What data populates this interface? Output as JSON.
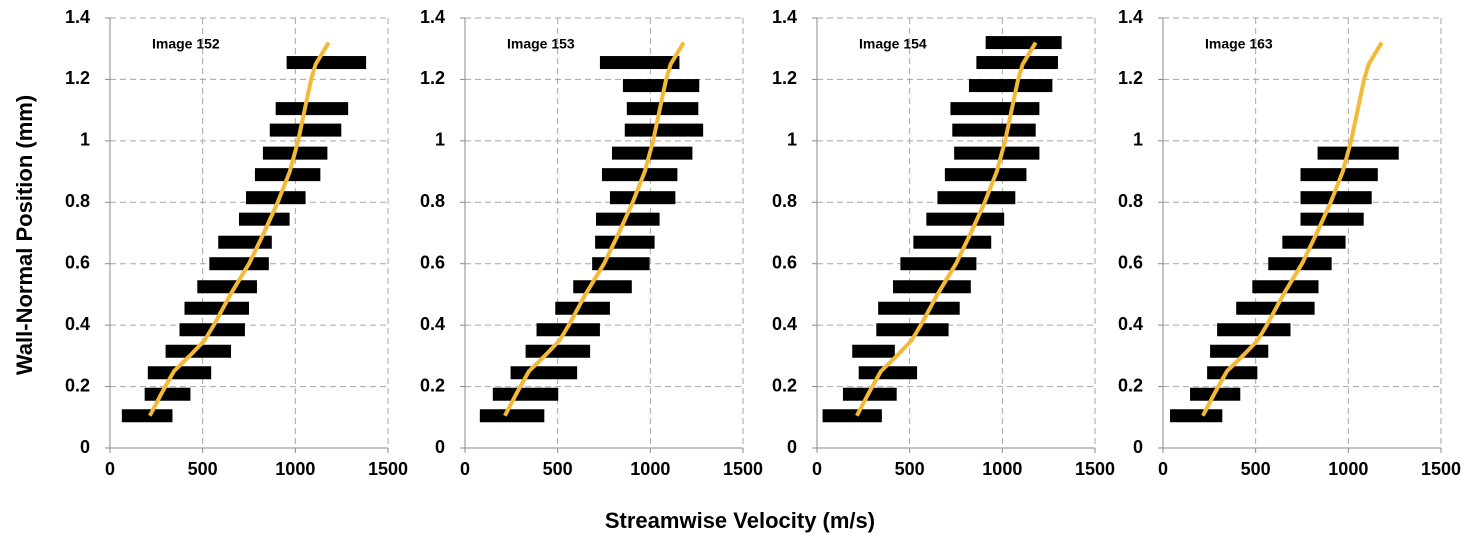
{
  "x_label": "Streamwise Velocity (m/s)",
  "y_label": "Wall-Normal Position (mm)",
  "chart_data": [
    {
      "type": "range-profile",
      "title": "Image 152",
      "xlim": [
        0,
        1500
      ],
      "xticks": [
        0,
        500,
        1000,
        1500
      ],
      "ylim": [
        0,
        1.4
      ],
      "yticks": [
        0,
        0.2,
        0.4,
        0.6,
        0.8,
        1,
        1.2,
        1.4
      ],
      "grid": true,
      "bars": {
        "color": "#000000",
        "y": [
          0.105,
          0.175,
          0.245,
          0.315,
          0.385,
          0.455,
          0.525,
          0.6,
          0.67,
          0.745,
          0.815,
          0.89,
          0.96,
          1.035,
          1.105,
          1.255
        ],
        "low": [
          64,
          187,
          204,
          300,
          375,
          402,
          471,
          536,
          584,
          696,
          734,
          782,
          825,
          862,
          894,
          953
        ],
        "high": [
          337,
          434,
          546,
          653,
          728,
          750,
          793,
          857,
          873,
          969,
          1055,
          1135,
          1173,
          1248,
          1285,
          1382
        ]
      },
      "line": {
        "color": "#f4b935",
        "y": [
          0.105,
          0.18,
          0.25,
          0.3,
          0.35,
          0.4,
          0.5,
          0.6,
          0.7,
          0.8,
          0.9,
          1,
          1.1,
          1.2,
          1.25,
          1.32
        ],
        "x": [
          215,
          280,
          345,
          430,
          510,
          560,
          650,
          750,
          830,
          905,
          970,
          1015,
          1050,
          1085,
          1110,
          1180
        ]
      }
    },
    {
      "type": "range-profile",
      "title": "Image 153",
      "xlim": [
        0,
        1500
      ],
      "xticks": [
        0,
        500,
        1000,
        1500
      ],
      "ylim": [
        0,
        1.4
      ],
      "yticks": [
        0,
        0.2,
        0.4,
        0.6,
        0.8,
        1,
        1.2,
        1.4
      ],
      "grid": true,
      "bars": {
        "color": "#000000",
        "y": [
          0.105,
          0.175,
          0.245,
          0.315,
          0.385,
          0.455,
          0.525,
          0.6,
          0.67,
          0.745,
          0.815,
          0.89,
          0.96,
          1.035,
          1.105,
          1.18,
          1.255
        ],
        "low": [
          80,
          150,
          246,
          327,
          386,
          487,
          584,
          686,
          702,
          707,
          782,
          739,
          793,
          862,
          873,
          852,
          728
        ],
        "high": [
          428,
          503,
          605,
          675,
          728,
          782,
          900,
          996,
          1023,
          1050,
          1135,
          1146,
          1227,
          1285,
          1259,
          1264,
          1157
        ]
      },
      "line": {
        "color": "#f4b935",
        "y": [
          0.105,
          0.18,
          0.25,
          0.3,
          0.35,
          0.4,
          0.5,
          0.6,
          0.7,
          0.8,
          0.9,
          1,
          1.1,
          1.2,
          1.25,
          1.32
        ],
        "x": [
          215,
          280,
          345,
          430,
          510,
          560,
          650,
          750,
          830,
          905,
          970,
          1015,
          1050,
          1085,
          1110,
          1180
        ]
      }
    },
    {
      "type": "range-profile",
      "title": "Image 154",
      "xlim": [
        0,
        1500
      ],
      "xticks": [
        0,
        500,
        1000,
        1500
      ],
      "ylim": [
        0,
        1.4
      ],
      "yticks": [
        0,
        0.2,
        0.4,
        0.6,
        0.8,
        1,
        1.2,
        1.4
      ],
      "grid": true,
      "bars": {
        "color": "#000000",
        "y": [
          0.105,
          0.175,
          0.245,
          0.315,
          0.385,
          0.455,
          0.525,
          0.6,
          0.67,
          0.745,
          0.815,
          0.89,
          0.96,
          1.035,
          1.105,
          1.18,
          1.255,
          1.32
        ],
        "low": [
          30,
          140,
          225,
          190,
          320,
          330,
          410,
          450,
          520,
          590,
          650,
          690,
          740,
          730,
          720,
          820,
          860,
          910
        ],
        "high": [
          350,
          430,
          540,
          420,
          710,
          770,
          830,
          860,
          940,
          1010,
          1070,
          1130,
          1200,
          1180,
          1200,
          1270,
          1300,
          1320
        ]
      },
      "line": {
        "color": "#f4b935",
        "y": [
          0.105,
          0.18,
          0.25,
          0.3,
          0.35,
          0.4,
          0.5,
          0.6,
          0.7,
          0.8,
          0.9,
          1,
          1.1,
          1.2,
          1.25,
          1.32
        ],
        "x": [
          215,
          280,
          345,
          430,
          510,
          560,
          650,
          750,
          830,
          905,
          970,
          1015,
          1050,
          1085,
          1110,
          1180
        ]
      }
    },
    {
      "type": "range-profile",
      "title": "Image 163",
      "xlim": [
        0,
        1500
      ],
      "xticks": [
        0,
        500,
        1000,
        1500
      ],
      "ylim": [
        0,
        1.4
      ],
      "yticks": [
        0,
        0.2,
        0.4,
        0.6,
        0.8,
        1,
        1.2,
        1.4
      ],
      "grid": true,
      "bars": {
        "color": "#000000",
        "y": [
          0.105,
          0.175,
          0.245,
          0.315,
          0.385,
          0.455,
          0.525,
          0.6,
          0.67,
          0.745,
          0.815,
          0.89,
          0.96
        ],
        "low": [
          38,
          146,
          238,
          254,
          292,
          395,
          482,
          568,
          644,
          742,
          742,
          742,
          834
        ],
        "high": [
          320,
          417,
          509,
          568,
          688,
          818,
          839,
          910,
          985,
          1083,
          1126,
          1159,
          1272
        ]
      },
      "line": {
        "color": "#f4b935",
        "y": [
          0.105,
          0.18,
          0.25,
          0.3,
          0.35,
          0.4,
          0.5,
          0.6,
          0.7,
          0.8,
          0.9,
          1,
          1.1,
          1.2,
          1.25,
          1.32
        ],
        "x": [
          215,
          280,
          345,
          430,
          510,
          560,
          650,
          750,
          830,
          905,
          970,
          1015,
          1050,
          1085,
          1110,
          1180
        ]
      }
    }
  ]
}
